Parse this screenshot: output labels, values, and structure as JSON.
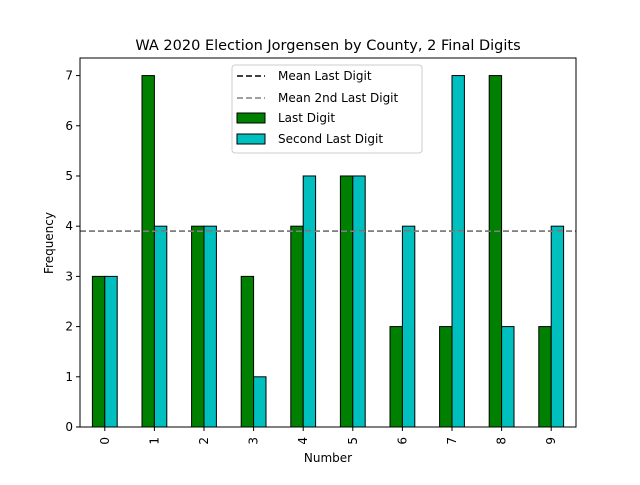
{
  "chart_data": {
    "type": "bar",
    "title": "WA 2020 Election Jorgensen by County, 2 Final Digits",
    "xlabel": "Number",
    "ylabel": "Frequency",
    "categories": [
      "0",
      "1",
      "2",
      "3",
      "4",
      "5",
      "6",
      "7",
      "8",
      "9"
    ],
    "ylim": [
      0,
      7.35
    ],
    "yticks": [
      0,
      1,
      2,
      3,
      4,
      5,
      6,
      7
    ],
    "series": [
      {
        "name": "Last Digit",
        "color": "#008000",
        "values": [
          3,
          7,
          4,
          3,
          4,
          5,
          2,
          2,
          7,
          2
        ]
      },
      {
        "name": "Second Last Digit",
        "color": "#00bfbf",
        "values": [
          3,
          4,
          4,
          1,
          5,
          5,
          4,
          7,
          2,
          4
        ]
      }
    ],
    "reference_lines": [
      {
        "name": "Mean Last Digit",
        "value": 3.9,
        "color": "#000000",
        "style": "dashed"
      },
      {
        "name": "Mean 2nd Last Digit",
        "value": 3.9,
        "color": "#808080",
        "style": "dashed"
      }
    ],
    "legend_position": "top-center",
    "grid": false
  }
}
